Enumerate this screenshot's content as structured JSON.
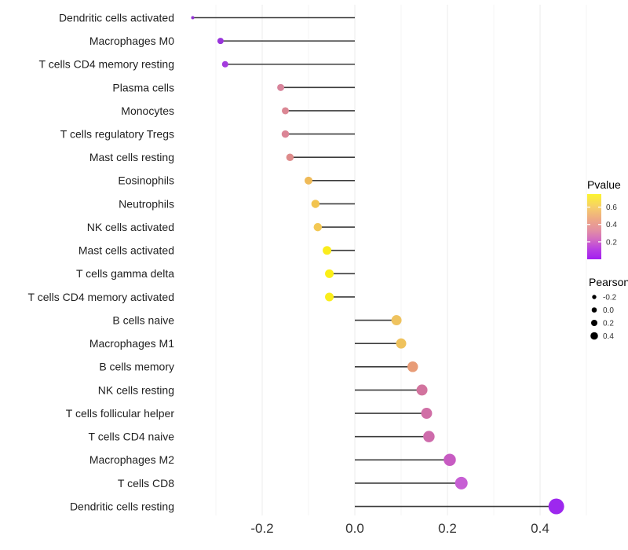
{
  "chart_data": {
    "type": "lollipop",
    "title": "",
    "xlabel": "",
    "ylabel": "",
    "x_axis": {
      "xlim": [
        -0.3695,
        0.5
      ],
      "ticks": [
        -0.2,
        0.0,
        0.2,
        0.4
      ],
      "tick_labels": [
        "-0.2",
        "0.0",
        "0.2",
        "0.4"
      ],
      "minor_gridlines": [
        -0.3,
        -0.1,
        0.1,
        0.3,
        0.5
      ],
      "baseline_value": 0.0
    },
    "grid": "vertical-only",
    "legend_position": "right",
    "points": [
      {
        "label": "Dendritic cells activated",
        "pearson": -0.35,
        "color": "#9232D2",
        "diameter": 4
      },
      {
        "label": "Macrophages M0",
        "pearson": -0.29,
        "color": "#9935DB",
        "diameter": 8
      },
      {
        "label": "T cells CD4 memory resting",
        "pearson": -0.28,
        "color": "#A43BDE",
        "diameter": 8
      },
      {
        "label": "Plasma cells",
        "pearson": -0.16,
        "color": "#D8849B",
        "diameter": 9
      },
      {
        "label": "Monocytes",
        "pearson": -0.15,
        "color": "#DB8794",
        "diameter": 9
      },
      {
        "label": "T cells regulatory  Tregs",
        "pearson": -0.15,
        "color": "#DB8596",
        "diameter": 9.5
      },
      {
        "label": "Mast cells resting",
        "pearson": -0.14,
        "color": "#DE8B8B",
        "diameter": 9.5
      },
      {
        "label": "Eosinophils",
        "pearson": -0.1,
        "color": "#EFBA58",
        "diameter": 10
      },
      {
        "label": "Neutrophils",
        "pearson": -0.085,
        "color": "#F2C44F",
        "diameter": 10.5
      },
      {
        "label": "NK cells activated",
        "pearson": -0.08,
        "color": "#F3C854",
        "diameter": 10.5
      },
      {
        "label": "Mast cells activated",
        "pearson": -0.06,
        "color": "#FAEC1D",
        "diameter": 11
      },
      {
        "label": "T cells gamma delta",
        "pearson": -0.055,
        "color": "#FBEF16",
        "diameter": 11
      },
      {
        "label": "T cells CD4 memory activated",
        "pearson": -0.055,
        "color": "#FAED1C",
        "diameter": 11
      },
      {
        "label": "B cells naive",
        "pearson": 0.09,
        "color": "#EFC35F",
        "diameter": 13
      },
      {
        "label": "Macrophages M1",
        "pearson": 0.1,
        "color": "#EFC25C",
        "diameter": 13
      },
      {
        "label": "B cells memory",
        "pearson": 0.125,
        "color": "#E89C77",
        "diameter": 13.5
      },
      {
        "label": "NK cells resting",
        "pearson": 0.145,
        "color": "#D2739E",
        "diameter": 14
      },
      {
        "label": "T cells follicular helper",
        "pearson": 0.155,
        "color": "#D06FA6",
        "diameter": 14
      },
      {
        "label": "T cells CD4 naive",
        "pearson": 0.16,
        "color": "#CE6BAB",
        "diameter": 14.5
      },
      {
        "label": "Macrophages M2",
        "pearson": 0.205,
        "color": "#C75BC2",
        "diameter": 15.5
      },
      {
        "label": "T cells CD8",
        "pearson": 0.23,
        "color": "#C75FD4",
        "diameter": 16
      },
      {
        "label": "Dendritic cells resting",
        "pearson": 0.435,
        "color": "#9D28EE",
        "diameter": 20
      }
    ],
    "legend": {
      "pvalue": {
        "title": "Pvalue",
        "range": [
          0.0,
          0.75
        ],
        "ticks": [
          0.6,
          0.4,
          0.2
        ],
        "tick_labels": [
          "0.6",
          "0.4",
          "0.2"
        ],
        "gradient": [
          {
            "offset": 0.0,
            "color": "#FCF42F"
          },
          {
            "offset": 0.2,
            "color": "#F6CE69"
          },
          {
            "offset": 0.4,
            "color": "#EDA687"
          },
          {
            "offset": 0.55,
            "color": "#E390A2"
          },
          {
            "offset": 0.7,
            "color": "#D26BC2"
          },
          {
            "offset": 0.85,
            "color": "#B83EE3"
          },
          {
            "offset": 1.0,
            "color": "#A21EF0"
          }
        ]
      },
      "pearson": {
        "title": "Pearson",
        "dot_color": "#000000",
        "entries": [
          {
            "label": "-0.2",
            "diameter": 5.4
          },
          {
            "label": "0.0",
            "diameter": 6.6
          },
          {
            "label": "0.2",
            "diameter": 8.0
          },
          {
            "label": "0.4",
            "diameter": 9.6
          }
        ]
      }
    },
    "style": {
      "background": "#ffffff",
      "stem_color": "#3b3b3b",
      "grid_major": "#ebebeb",
      "grid_minor": "#f4f4f4",
      "axis_tick_text": "#333333",
      "category_text": "#1f1f1f",
      "legend_title_text": "#000000",
      "legend_value_text": "#333333"
    }
  }
}
